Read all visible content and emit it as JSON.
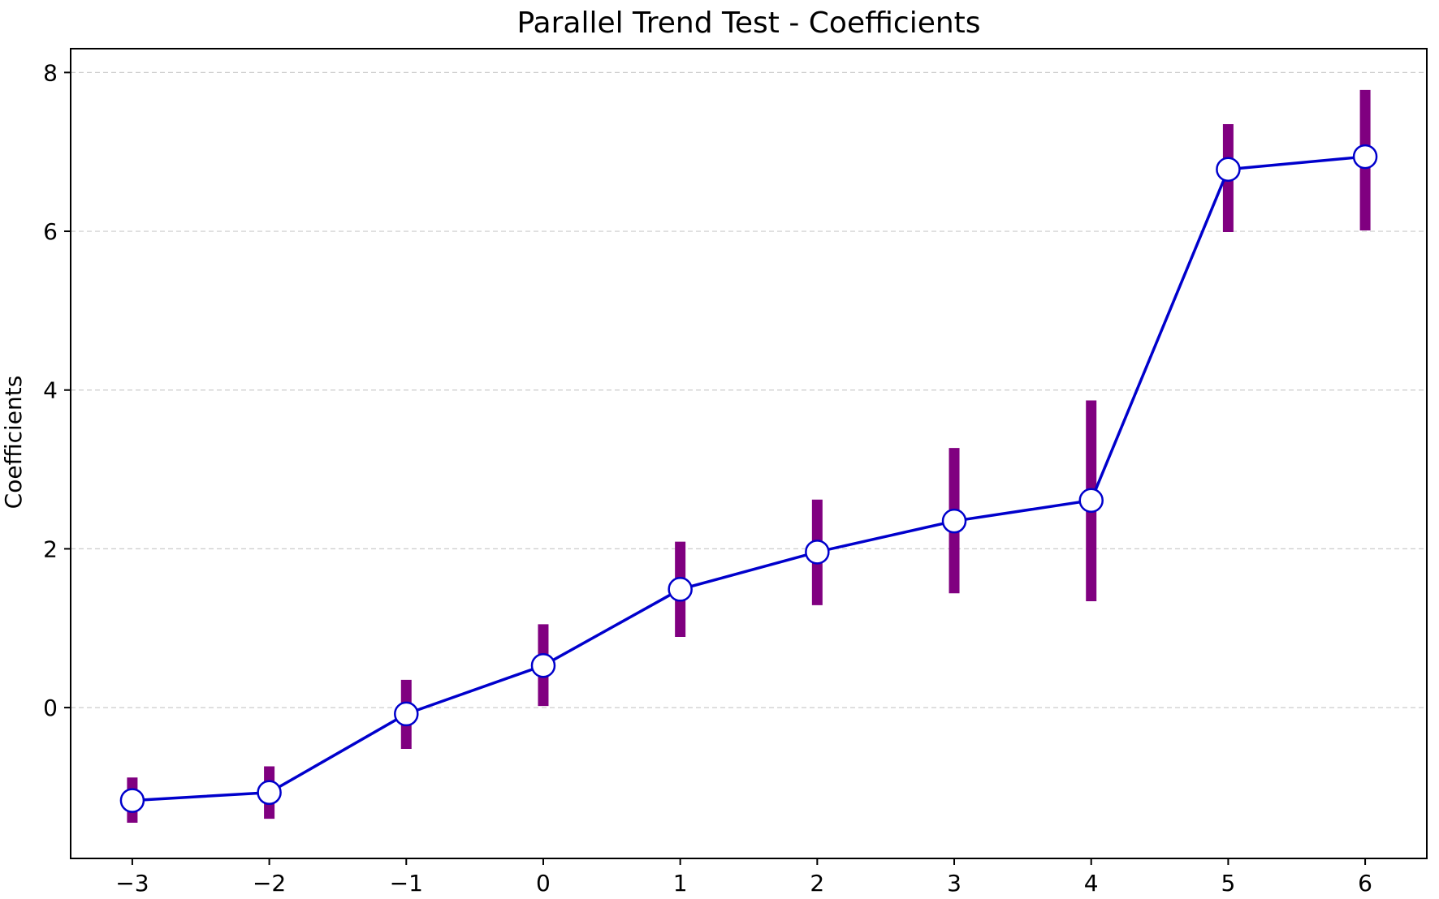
{
  "chart_data": {
    "type": "line",
    "title": "Parallel Trend Test - Coefficients",
    "xlabel": "",
    "ylabel": "Coefficients",
    "x": [
      -3,
      -2,
      -1,
      0,
      1,
      2,
      3,
      4,
      5,
      6
    ],
    "x_tick_labels": [
      "−3",
      "−2",
      "−1",
      "0",
      "1",
      "2",
      "3",
      "4",
      "5",
      "6"
    ],
    "xlim": [
      -3.45,
      6.45
    ],
    "ylim": [
      -1.9,
      8.3
    ],
    "y_ticks": [
      0,
      2,
      4,
      6,
      8
    ],
    "y_tick_labels": [
      "0",
      "2",
      "4",
      "6",
      "8"
    ],
    "grid": "horizontal dashed",
    "series": [
      {
        "values": [
          -1.17,
          -1.07,
          -0.08,
          0.53,
          1.49,
          1.96,
          2.35,
          2.61,
          6.78,
          6.94
        ],
        "ci_lower": [
          -1.45,
          -1.4,
          -0.52,
          0.02,
          0.89,
          1.29,
          1.44,
          1.34,
          5.99,
          6.01
        ],
        "ci_upper": [
          -0.88,
          -0.74,
          0.35,
          1.05,
          2.09,
          2.62,
          3.27,
          3.87,
          7.35,
          7.78
        ]
      }
    ],
    "colors": {
      "line": "#0000cc",
      "marker_fill": "#ffffff",
      "marker_edge": "#0000cc",
      "error_bar": "#800080",
      "grid": "#cccccc",
      "axis": "#000000"
    }
  }
}
